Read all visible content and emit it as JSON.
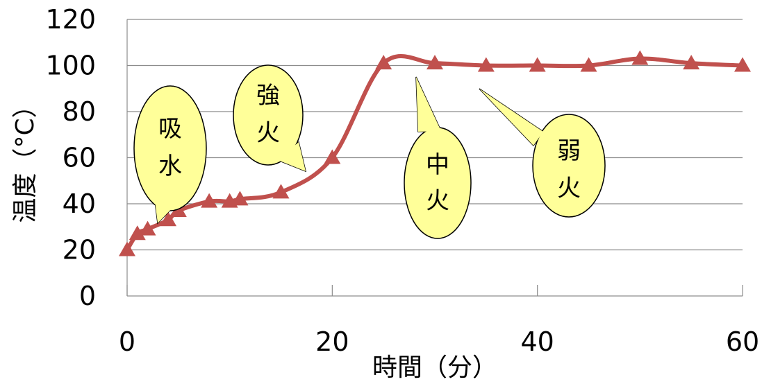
{
  "chart_data": {
    "type": "line",
    "xlabel": "時間（分）",
    "ylabel": "温度（°C）",
    "xlim": [
      0,
      60
    ],
    "ylim": [
      0,
      120
    ],
    "x_ticks": [
      "0",
      "20",
      "40",
      "60"
    ],
    "y_ticks": [
      "0",
      "20",
      "40",
      "60",
      "80",
      "100",
      "120"
    ],
    "grid": "horizontal",
    "line_color": "#c0504d",
    "series": [
      {
        "x": [
          0,
          1,
          2,
          4,
          5,
          8,
          10,
          11,
          15,
          20,
          25,
          30,
          35,
          40,
          45,
          50,
          55,
          60
        ],
        "values": [
          20,
          27,
          29,
          33,
          37,
          41,
          41,
          42,
          45,
          60,
          101,
          101,
          100,
          100,
          100,
          103,
          101,
          100
        ]
      }
    ],
    "annotations": [
      {
        "id": "kyusui",
        "lines": [
          "吸",
          "水"
        ]
      },
      {
        "id": "kyoubi",
        "lines": [
          "強",
          "火"
        ]
      },
      {
        "id": "chuubi",
        "lines": [
          "中",
          "火"
        ]
      },
      {
        "id": "jakubi",
        "lines": [
          "弱",
          "火"
        ]
      }
    ]
  }
}
